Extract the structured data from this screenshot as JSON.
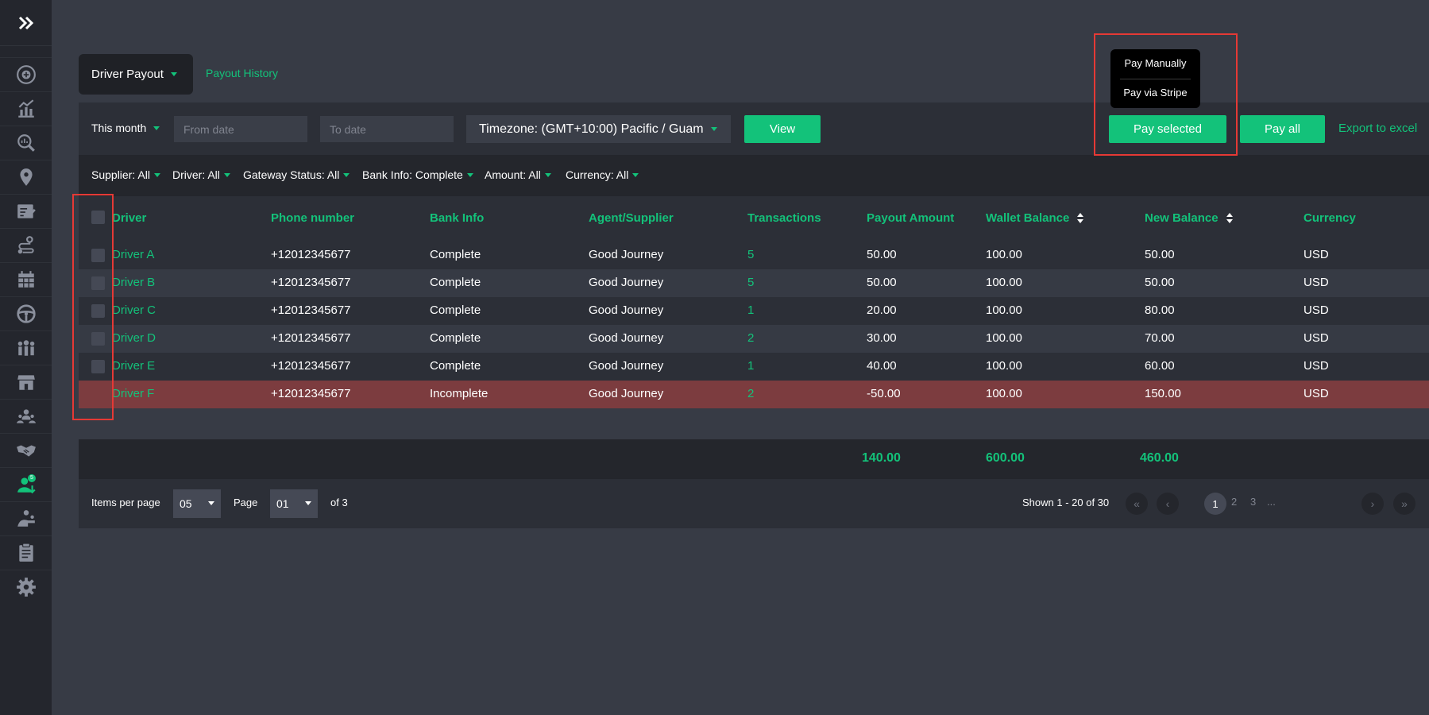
{
  "sidebar": {
    "icons": [
      "expand-icon",
      "dashboard-icon",
      "analytics-icon",
      "search-report-icon",
      "location-pin-icon",
      "bookings-check-icon",
      "route-icon",
      "calendar-icon",
      "steering-wheel-icon",
      "team-icon",
      "store-icon",
      "agents-icon",
      "handshake-icon",
      "driver-payout-icon",
      "customers-icon",
      "clipboard-icon",
      "settings-icon"
    ],
    "badge": "5"
  },
  "tabs": {
    "active": "Driver Payout",
    "link": "Payout History"
  },
  "filter_bar": {
    "period": "This month",
    "from_placeholder": "From date",
    "to_placeholder": "To date",
    "timezone": "Timezone: (GMT+10:00) Pacific / Guam",
    "view_label": "View",
    "pay_selected_label": "Pay selected",
    "pay_all_label": "Pay all",
    "export_label": "Export to excel"
  },
  "pay_menu": {
    "manual": "Pay Manually",
    "stripe": "Pay via Stripe"
  },
  "chips": [
    "Supplier: All",
    "Driver: All",
    "Gateway Status: All",
    "Bank Info: Complete",
    "Amount: All",
    "Currency: All"
  ],
  "table": {
    "headers": [
      "Driver",
      "Phone number",
      "Bank Info",
      "Agent/Supplier",
      "Transactions",
      "Payout Amount",
      "Wallet Balance",
      "New Balance",
      "Currency"
    ],
    "rows": [
      {
        "driver": "Driver A",
        "phone": "+12012345677",
        "bank": "Complete",
        "agent": "Good Journey",
        "transactions": "5",
        "payout": "50.00",
        "wallet": "100.00",
        "new_balance": "50.00",
        "currency": "USD"
      },
      {
        "driver": "Driver B",
        "phone": "+12012345677",
        "bank": "Complete",
        "agent": "Good Journey",
        "transactions": "5",
        "payout": "50.00",
        "wallet": "100.00",
        "new_balance": "50.00",
        "currency": "USD"
      },
      {
        "driver": "Driver C",
        "phone": "+12012345677",
        "bank": "Complete",
        "agent": "Good Journey",
        "transactions": "1",
        "payout": "20.00",
        "wallet": "100.00",
        "new_balance": "80.00",
        "currency": "USD"
      },
      {
        "driver": "Driver D",
        "phone": "+12012345677",
        "bank": "Complete",
        "agent": "Good Journey",
        "transactions": "2",
        "payout": "30.00",
        "wallet": "100.00",
        "new_balance": "70.00",
        "currency": "USD"
      },
      {
        "driver": "Driver E",
        "phone": "+12012345677",
        "bank": "Complete",
        "agent": "Good Journey",
        "transactions": "1",
        "payout": "40.00",
        "wallet": "100.00",
        "new_balance": "60.00",
        "currency": "USD"
      },
      {
        "driver": "Driver F",
        "phone": "+12012345677",
        "bank": "Incomplete",
        "agent": "Good Journey",
        "transactions": "2",
        "payout": "-50.00",
        "wallet": "100.00",
        "new_balance": "150.00",
        "currency": "USD"
      }
    ],
    "totals": {
      "payout": "140.00",
      "wallet": "600.00",
      "new_balance": "460.00"
    }
  },
  "pager": {
    "items_label": "Items per page",
    "items_value": "05",
    "page_label": "Page",
    "page_value": "01",
    "of_label": "of 3",
    "shown_label": "Shown 1 - 20 of 30",
    "pages": [
      "1",
      "2",
      "3"
    ],
    "ellipsis": "...",
    "first_glyph": "«",
    "prev_glyph": "‹",
    "next_glyph": "›",
    "last_glyph": "»"
  },
  "colors": {
    "accent": "#13c27a",
    "error_row": "#7c3c3f",
    "highlight": "#e53935"
  }
}
